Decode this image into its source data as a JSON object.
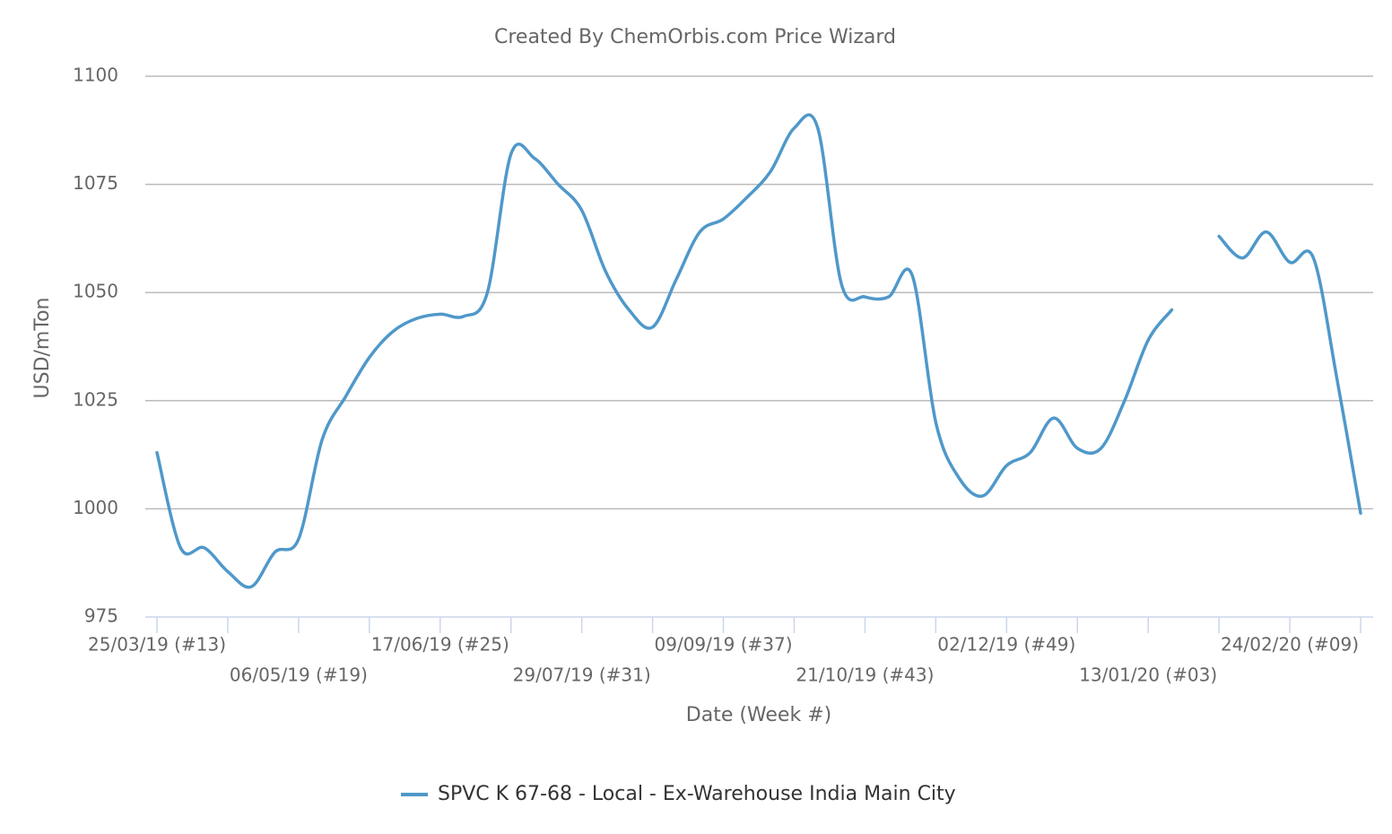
{
  "chart_data": {
    "type": "line",
    "title": "Created By ChemOrbis.com Price Wizard",
    "x_label": "Date (Week #)",
    "y_label": "USD/mTon",
    "categories": [
      "25/03/19 (#13)",
      null,
      null,
      null,
      null,
      null,
      "06/05/19 (#19)",
      null,
      null,
      null,
      null,
      null,
      "17/06/19 (#25)",
      null,
      null,
      null,
      null,
      null,
      "29/07/19 (#31)",
      null,
      null,
      null,
      null,
      null,
      "09/09/19 (#37)",
      null,
      null,
      null,
      null,
      null,
      "21/10/19 (#43)",
      null,
      null,
      null,
      null,
      null,
      "02/12/19 (#49)",
      null,
      null,
      null,
      null,
      null,
      "13/01/20 (#03)",
      null,
      null,
      null,
      null,
      null,
      "24/02/20 (#09)",
      null,
      null,
      null
    ],
    "series": [
      {
        "name": "SPVC K 67-68 - Local - Ex-Warehouse India Main City",
        "color": "#4f98ca",
        "values": [
          1013,
          991,
          991,
          985.5,
          982,
          990,
          993,
          1016,
          1026,
          1035,
          1041,
          1044,
          1045,
          1044.5,
          1050,
          1082,
          1081,
          1075,
          1069,
          1055,
          1046,
          1042,
          1053,
          1064,
          1067,
          1072,
          1078,
          1088,
          1088,
          1052,
          1049,
          1049,
          1054,
          1020,
          1007,
          1003,
          1010,
          1013,
          1021,
          1014,
          1014,
          1025,
          1039,
          1046,
          null,
          1063,
          1058,
          1064,
          1057,
          1058,
          1030,
          999
        ]
      }
    ],
    "ylim": [
      975,
      1100
    ],
    "yticks": [
      975,
      1000,
      1025,
      1050,
      1075,
      1100
    ],
    "grid": true
  }
}
